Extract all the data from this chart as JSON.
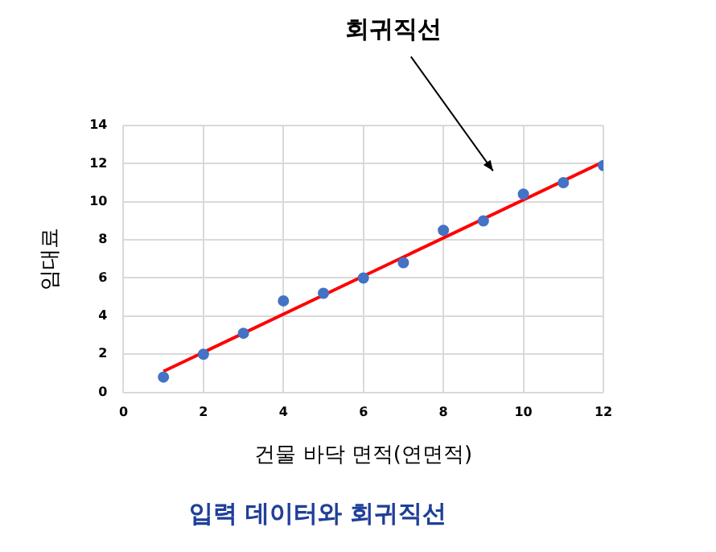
{
  "chart_data": {
    "type": "scatter",
    "title": "입력 데이터와 회귀직선",
    "xlabel": "건물 바닥 면적(연면적)",
    "ylabel": "임대료",
    "xlim": [
      0,
      12
    ],
    "xticks": [
      0,
      2,
      4,
      6,
      8,
      10,
      12
    ],
    "ylim": [
      0,
      14
    ],
    "yticks": [
      0,
      2,
      4,
      6,
      8,
      10,
      12,
      14
    ],
    "grid": true,
    "annotations": [
      "회귀직선"
    ],
    "series": [
      {
        "type": "scatter",
        "marker": "circle",
        "color": "#4472c4",
        "x": [
          1,
          2,
          3,
          4,
          5,
          6,
          7,
          8,
          9,
          10,
          11,
          12
        ],
        "values": [
          0.8,
          2.0,
          3.1,
          4.8,
          5.2,
          6.0,
          6.8,
          8.5,
          9.0,
          10.4,
          11.0,
          11.9
        ]
      },
      {
        "type": "line",
        "marker": "none",
        "color": "#ff0000",
        "x": [
          1,
          12
        ],
        "values": [
          1.1,
          12.1
        ]
      }
    ]
  }
}
